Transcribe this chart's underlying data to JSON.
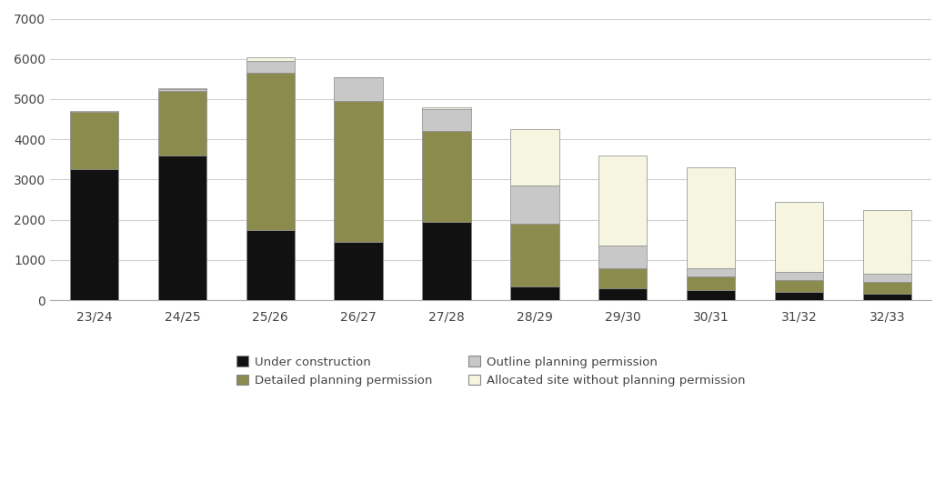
{
  "categories": [
    "23/24",
    "24/25",
    "25/26",
    "26/27",
    "27/28",
    "28/29",
    "29/30",
    "30/31",
    "31/32",
    "32/33"
  ],
  "under_construction": [
    3250,
    3600,
    1750,
    1450,
    1950,
    350,
    300,
    250,
    200,
    150
  ],
  "detailed_planning": [
    1430,
    1600,
    3900,
    3500,
    2250,
    1550,
    500,
    350,
    300,
    300
  ],
  "outline_planning": [
    0,
    50,
    300,
    600,
    550,
    950,
    550,
    200,
    200,
    200
  ],
  "allocated_site": [
    20,
    30,
    100,
    0,
    50,
    1400,
    2250,
    2500,
    1750,
    1600
  ],
  "color_under_construction": "#111111",
  "color_detailed_planning": "#8b8b4e",
  "color_outline_planning": "#c8c8c8",
  "color_allocated_site": "#f5f5e0",
  "bar_edge_color": "#888888",
  "ylim": [
    0,
    7000
  ],
  "yticks": [
    0,
    1000,
    2000,
    3000,
    4000,
    5000,
    6000,
    7000
  ],
  "legend_labels": [
    "Under construction",
    "Detailed planning permission",
    "Outline planning permission",
    "Allocated site without planning permission"
  ],
  "background_color": "#ffffff",
  "grid_color": "#d0d0d0",
  "bar_width": 0.55,
  "figsize": [
    10.39,
    5.52
  ],
  "dpi": 100
}
